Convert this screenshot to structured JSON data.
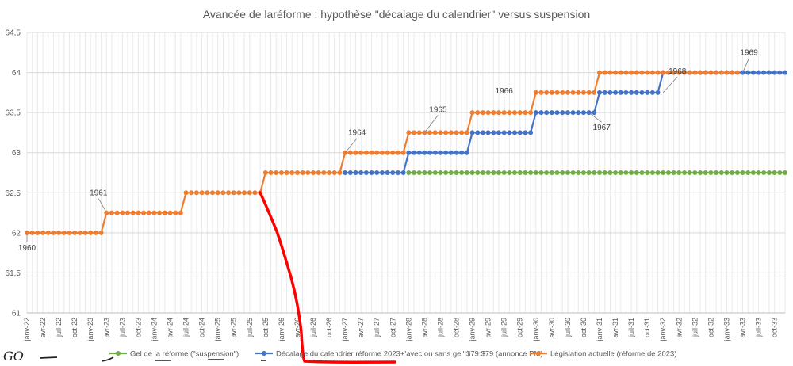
{
  "chart_data": {
    "type": "line",
    "title": "Avancée de laréforme : hypothèse \"décalage du calendrier\" versus suspension",
    "ylim": [
      61,
      64.5
    ],
    "yticks": [
      "61",
      "61,5",
      "62",
      "62,5",
      "63",
      "63,5",
      "64",
      "64,5"
    ],
    "ytick_values": [
      61,
      61.5,
      62,
      62.5,
      63,
      63.5,
      64,
      64.5
    ],
    "x": [
      "janv-22",
      "avr-22",
      "juil-22",
      "oct-22",
      "janv-23",
      "avr-23",
      "juil-23",
      "oct-23",
      "janv-24",
      "avr-24",
      "juil-24",
      "oct-24",
      "janv-25",
      "avr-25",
      "juil-25",
      "oct-25",
      "janv-26",
      "avr-26",
      "juil-26",
      "oct-26",
      "janv-27",
      "avr-27",
      "juil-27",
      "oct-27",
      "janv-28",
      "avr-28",
      "juil-28",
      "oct-28",
      "janv-29",
      "avr-29",
      "juil-29",
      "oct-29",
      "janv-30",
      "avr-30",
      "juil-30",
      "oct-30",
      "janv-31",
      "avr-31",
      "juil-31",
      "oct-31",
      "janv-32",
      "avr-32",
      "juil-32",
      "oct-32",
      "janv-33",
      "avr-33",
      "juil-33",
      "oct-33"
    ],
    "grid": true,
    "legend_position": "bottom",
    "series": [
      {
        "name": "Gel de la réforme (\"suspension\")",
        "color": "#70ad47",
        "start_month": 72,
        "end_month": 143,
        "steps": [
          [
            72,
            62.75
          ]
        ]
      },
      {
        "name": "Décalage du calendrier réforme 2023+'avec ou sans gel'!$79:$79 (annonce PM)",
        "color": "#4472c4",
        "start_month": 60,
        "end_month": 143,
        "steps": [
          [
            60,
            62.75
          ],
          [
            72,
            63
          ],
          [
            84,
            63.25
          ],
          [
            96,
            63.5
          ],
          [
            108,
            63.75
          ],
          [
            120,
            64
          ]
        ]
      },
      {
        "name": "Législation actuelle (réforme de 2023)",
        "color": "#ed7d31",
        "start_month": 0,
        "end_month": 134,
        "steps": [
          [
            0,
            62
          ],
          [
            15,
            62.25
          ],
          [
            30,
            62.5
          ],
          [
            45,
            62.75
          ],
          [
            60,
            63
          ],
          [
            72,
            63.25
          ],
          [
            84,
            63.5
          ],
          [
            96,
            63.75
          ],
          [
            108,
            64
          ]
        ]
      }
    ],
    "annotations": [
      {
        "label": "1960",
        "month": 0,
        "value": 62
      },
      {
        "label": "1961",
        "month": 15,
        "value": 62.25
      },
      {
        "label": "1964",
        "month": 60,
        "value": 63
      },
      {
        "label": "1965",
        "month": 75,
        "value": 63.25
      },
      {
        "label": "1966",
        "month": 90,
        "value": 63.5
      },
      {
        "label": "1967",
        "month": 106,
        "value": 63.5
      },
      {
        "label": "1968",
        "month": 120,
        "value": 63.75
      },
      {
        "label": "1969",
        "month": 135,
        "value": 64
      }
    ]
  },
  "handwriting": {
    "note": "GO",
    "color": "#ff0000"
  }
}
